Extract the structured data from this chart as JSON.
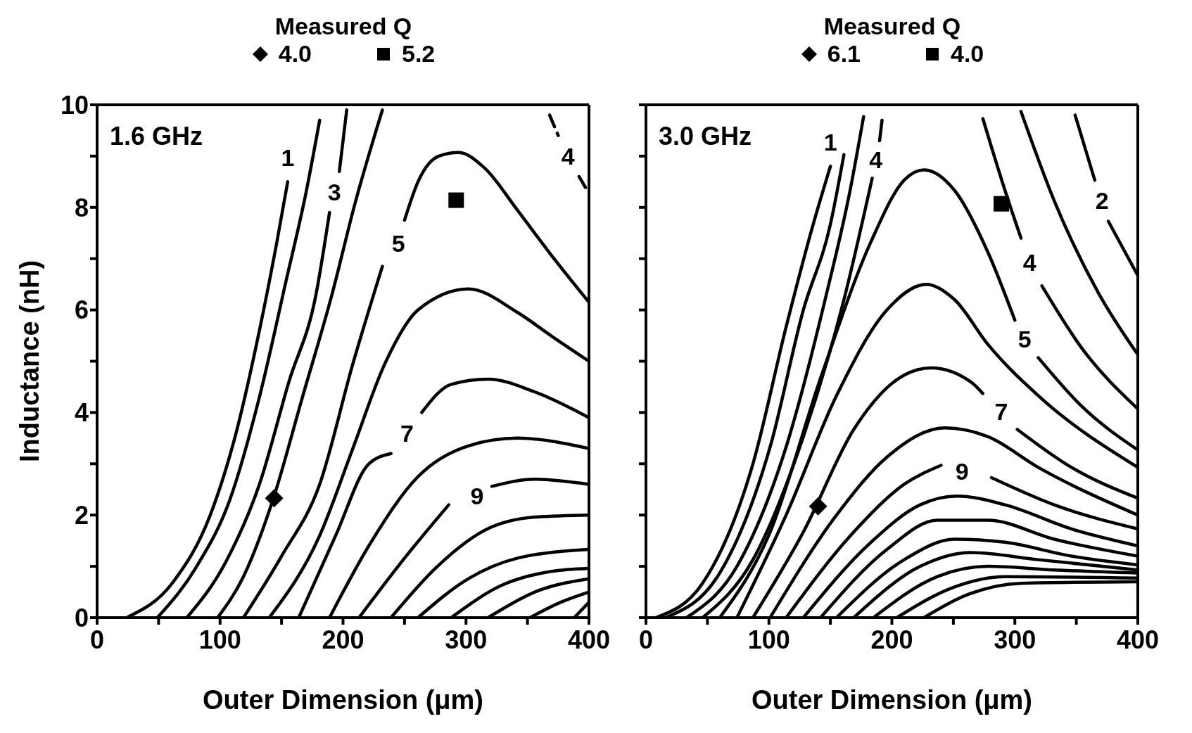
{
  "chart_data": [
    {
      "type": "line",
      "xlabel": "Outer Dimension (μm)",
      "ylabel": "Inductance (nH)",
      "legend_title": "Measured Q",
      "legend": "top",
      "annotations": [
        "1.6 GHz"
      ],
      "color": "#000000",
      "marker": "none",
      "line_style": "solid",
      "xlim": [
        0,
        400
      ],
      "ylim": [
        0,
        10
      ],
      "xticks": [
        0,
        {
          "value": 50,
          "label": null
        },
        100,
        {
          "value": 150,
          "label": null
        },
        200,
        {
          "value": 250,
          "label": null
        },
        300,
        {
          "value": 350,
          "label": null
        },
        400
      ],
      "yticks": [
        0,
        {
          "value": 1,
          "label": null
        },
        2,
        {
          "value": 3,
          "label": null
        },
        4,
        {
          "value": 5,
          "label": null
        },
        6,
        {
          "value": 7,
          "label": null
        },
        8,
        {
          "value": 9,
          "label": null
        },
        10
      ],
      "series": [
        {
          "name": "1",
          "x": [
            24,
            62,
            92,
            113,
            132,
            146,
            155
          ],
          "values": [
            0,
            0.7,
            2.0,
            3.6,
            5.6,
            7.3,
            8.5
          ]
        },
        {
          "x": [
            49,
            81,
            108,
            132,
            154,
            170,
            181
          ],
          "values": [
            0,
            1.0,
            2.3,
            4.3,
            6.6,
            8.3,
            9.7
          ]
        },
        {
          "name": "3",
          "x": [
            73,
            105,
            132,
            156,
            178,
            189,
            193,
            197,
            203
          ],
          "values": [
            0,
            1.1,
            2.6,
            4.6,
            6.3,
            7.9,
            null,
            8.7,
            9.9
          ]
        },
        {
          "x": [
            98,
            119,
            143,
            167,
            191,
            210,
            232
          ],
          "values": [
            0,
            0.8,
            2.3,
            4.3,
            6.3,
            8.1,
            9.9
          ]
        },
        {
          "name": "5",
          "x": [
            119,
            150,
            181,
            208,
            232,
            245,
            250,
            261,
            278,
            294,
            315,
            342,
            369,
            400
          ],
          "values": [
            0,
            1.2,
            2.6,
            4.95,
            6.85,
            null,
            7.75,
            8.5,
            9.0,
            9.07,
            8.77,
            7.94,
            7.08,
            6.15
          ]
        },
        {
          "x": [
            140,
            181,
            208,
            234,
            261,
            302,
            342,
            369,
            400
          ],
          "values": [
            0,
            1.6,
            3.3,
            4.95,
            6.0,
            6.41,
            5.95,
            5.5,
            5.0
          ]
        },
        {
          "name": "7",
          "x": [
            164,
            194,
            221,
            239,
            252,
            264,
            288,
            318,
            356,
            400
          ],
          "values": [
            0,
            1.6,
            3.0,
            3.2,
            null,
            4.0,
            4.55,
            4.65,
            4.4,
            3.9
          ]
        },
        {
          "x": [
            189,
            221,
            261,
            302,
            342,
            400
          ],
          "values": [
            0,
            1.4,
            2.75,
            3.35,
            3.5,
            3.3
          ]
        },
        {
          "name": "9",
          "x": [
            213,
            248,
            286,
            309,
            321,
            356,
            400
          ],
          "values": [
            0,
            1.1,
            2.2,
            null,
            2.56,
            2.7,
            2.6
          ]
        },
        {
          "x": [
            239,
            275,
            315,
            356,
            400
          ],
          "values": [
            0,
            0.96,
            1.7,
            1.96,
            2.0
          ]
        },
        {
          "x": [
            261,
            302,
            342,
            400
          ],
          "values": [
            0,
            0.76,
            1.16,
            1.33
          ]
        },
        {
          "x": [
            288,
            329,
            369,
            400
          ],
          "values": [
            0,
            0.63,
            0.9,
            0.96
          ]
        },
        {
          "x": [
            318,
            356,
            400
          ],
          "values": [
            0,
            0.5,
            0.76
          ]
        },
        {
          "x": [
            352,
            377,
            400
          ],
          "values": [
            0,
            0.3,
            0.5
          ]
        },
        {
          "x": [
            388,
            400
          ],
          "values": [
            0,
            0.3
          ]
        },
        {
          "name": "4",
          "line_style": "dashed",
          "x": [
            368,
            375,
            383,
            392,
            400
          ],
          "values": [
            9.8,
            9.4,
            null,
            8.6,
            8.27
          ]
        },
        {
          "name": "4.0",
          "type": "scatter",
          "marker": "diamond",
          "x": [
            144
          ],
          "values": [
            2.33
          ]
        },
        {
          "name": "5.2",
          "type": "scatter",
          "marker": "square",
          "x": [
            292
          ],
          "values": [
            8.14
          ]
        }
      ]
    },
    {
      "type": "line",
      "xlabel": "Outer Dimension (μm)",
      "legend_title": "Measured Q",
      "legend": "top",
      "annotations": [
        "3.0 GHz"
      ],
      "color": "#000000",
      "marker": "none",
      "line_style": "solid",
      "tick_labels": "x",
      "xlim": [
        0,
        400
      ],
      "ylim": [
        0,
        10
      ],
      "xticks": [
        0,
        {
          "value": 50,
          "label": null
        },
        100,
        {
          "value": 150,
          "label": null
        },
        200,
        {
          "value": 250,
          "label": null
        },
        300,
        {
          "value": 350,
          "label": null
        },
        400
      ],
      "yticks": [
        0,
        {
          "value": 1,
          "label": null
        },
        2,
        {
          "value": 3,
          "label": null
        },
        4,
        {
          "value": 5,
          "label": null
        },
        6,
        {
          "value": 7,
          "label": null
        },
        8,
        {
          "value": 9,
          "label": null
        },
        10
      ],
      "series": [
        {
          "name": "1",
          "x": [
            8,
            46,
            87,
            114,
            136,
            150
          ],
          "values": [
            0,
            0.67,
            3.0,
            5.67,
            7.67,
            8.8
          ]
        },
        {
          "x": [
            16,
            60,
            101,
            128,
            150,
            161
          ],
          "values": [
            0,
            0.87,
            3.33,
            6.0,
            7.67,
            9.03
          ]
        },
        {
          "x": [
            33,
            74,
            114,
            147,
            166,
            177
          ],
          "values": [
            0,
            1.0,
            3.33,
            6.33,
            8.33,
            9.77
          ]
        },
        {
          "name": "4",
          "x": [
            46,
            87,
            128,
            161,
            184,
            187,
            190,
            192
          ],
          "values": [
            0,
            1.13,
            3.53,
            6.2,
            8.57,
            null,
            9.3,
            9.7
          ]
        },
        {
          "name": "4",
          "x": [
            274,
            292,
            305,
            312,
            322,
            354,
            400
          ],
          "values": [
            9.73,
            8.33,
            7.4,
            null,
            6.47,
            5.27,
            4.07
          ]
        },
        {
          "x": [
            305,
            332,
            368,
            400
          ],
          "values": [
            9.87,
            8.13,
            6.33,
            5.13
          ]
        },
        {
          "name": "2",
          "x": [
            349,
            365,
            371,
            376,
            400
          ],
          "values": [
            9.8,
            8.53,
            null,
            7.73,
            6.67
          ]
        },
        {
          "name": "5",
          "x": [
            60,
            101,
            142,
            183,
            210,
            226,
            251,
            278,
            300,
            308,
            319,
            354,
            400
          ],
          "values": [
            0,
            1.67,
            4.67,
            7.33,
            8.53,
            8.73,
            8.33,
            7.13,
            5.8,
            null,
            5.07,
            4.13,
            3.27
          ]
        },
        {
          "x": [
            74,
            114,
            155,
            196,
            228,
            251,
            278,
            319,
            400
          ],
          "values": [
            0,
            2.0,
            4.33,
            6.0,
            6.5,
            6.2,
            5.33,
            4.33,
            2.93
          ]
        },
        {
          "name": "7",
          "x": [
            87,
            128,
            169,
            210,
            232,
            264,
            274,
            289,
            302,
            346,
            400
          ],
          "values": [
            0,
            1.67,
            3.67,
            4.73,
            4.87,
            4.6,
            4.37,
            null,
            3.67,
            2.93,
            2.33
          ]
        },
        {
          "x": [
            101,
            155,
            196,
            243,
            278,
            319,
            400
          ],
          "values": [
            0,
            2.0,
            3.13,
            3.7,
            3.53,
            2.93,
            2.0
          ]
        },
        {
          "name": "9",
          "x": [
            114,
            169,
            210,
            240,
            257,
            281,
            332,
            400
          ],
          "values": [
            0,
            1.67,
            2.6,
            2.97,
            null,
            2.73,
            2.2,
            1.73
          ]
        },
        {
          "x": [
            128,
            183,
            223,
            253,
            292,
            346,
            400
          ],
          "values": [
            0,
            1.47,
            2.2,
            2.37,
            2.2,
            1.73,
            1.4
          ]
        },
        {
          "x": [
            142,
            196,
            237,
            278,
            332,
            400
          ],
          "values": [
            0,
            1.33,
            1.9,
            1.9,
            1.53,
            1.2
          ]
        },
        {
          "x": [
            155,
            210,
            251,
            292,
            346,
            400
          ],
          "values": [
            0,
            1.13,
            1.53,
            1.47,
            1.2,
            1.03
          ]
        },
        {
          "x": [
            169,
            223,
            264,
            319,
            400
          ],
          "values": [
            0,
            1.0,
            1.27,
            1.13,
            0.93
          ]
        },
        {
          "x": [
            185,
            237,
            278,
            332,
            400
          ],
          "values": [
            0,
            0.8,
            1.0,
            0.93,
            0.87
          ]
        },
        {
          "x": [
            204,
            251,
            292,
            400
          ],
          "values": [
            0,
            0.6,
            0.8,
            0.77
          ]
        },
        {
          "x": [
            226,
            264,
            305,
            400
          ],
          "values": [
            0,
            0.47,
            0.67,
            0.7
          ]
        },
        {
          "name": "6.1",
          "type": "scatter",
          "marker": "diamond",
          "x": [
            140
          ],
          "values": [
            2.17
          ]
        },
        {
          "name": "4.0",
          "type": "scatter",
          "marker": "square",
          "x": [
            289
          ],
          "values": [
            8.07
          ]
        }
      ]
    }
  ]
}
